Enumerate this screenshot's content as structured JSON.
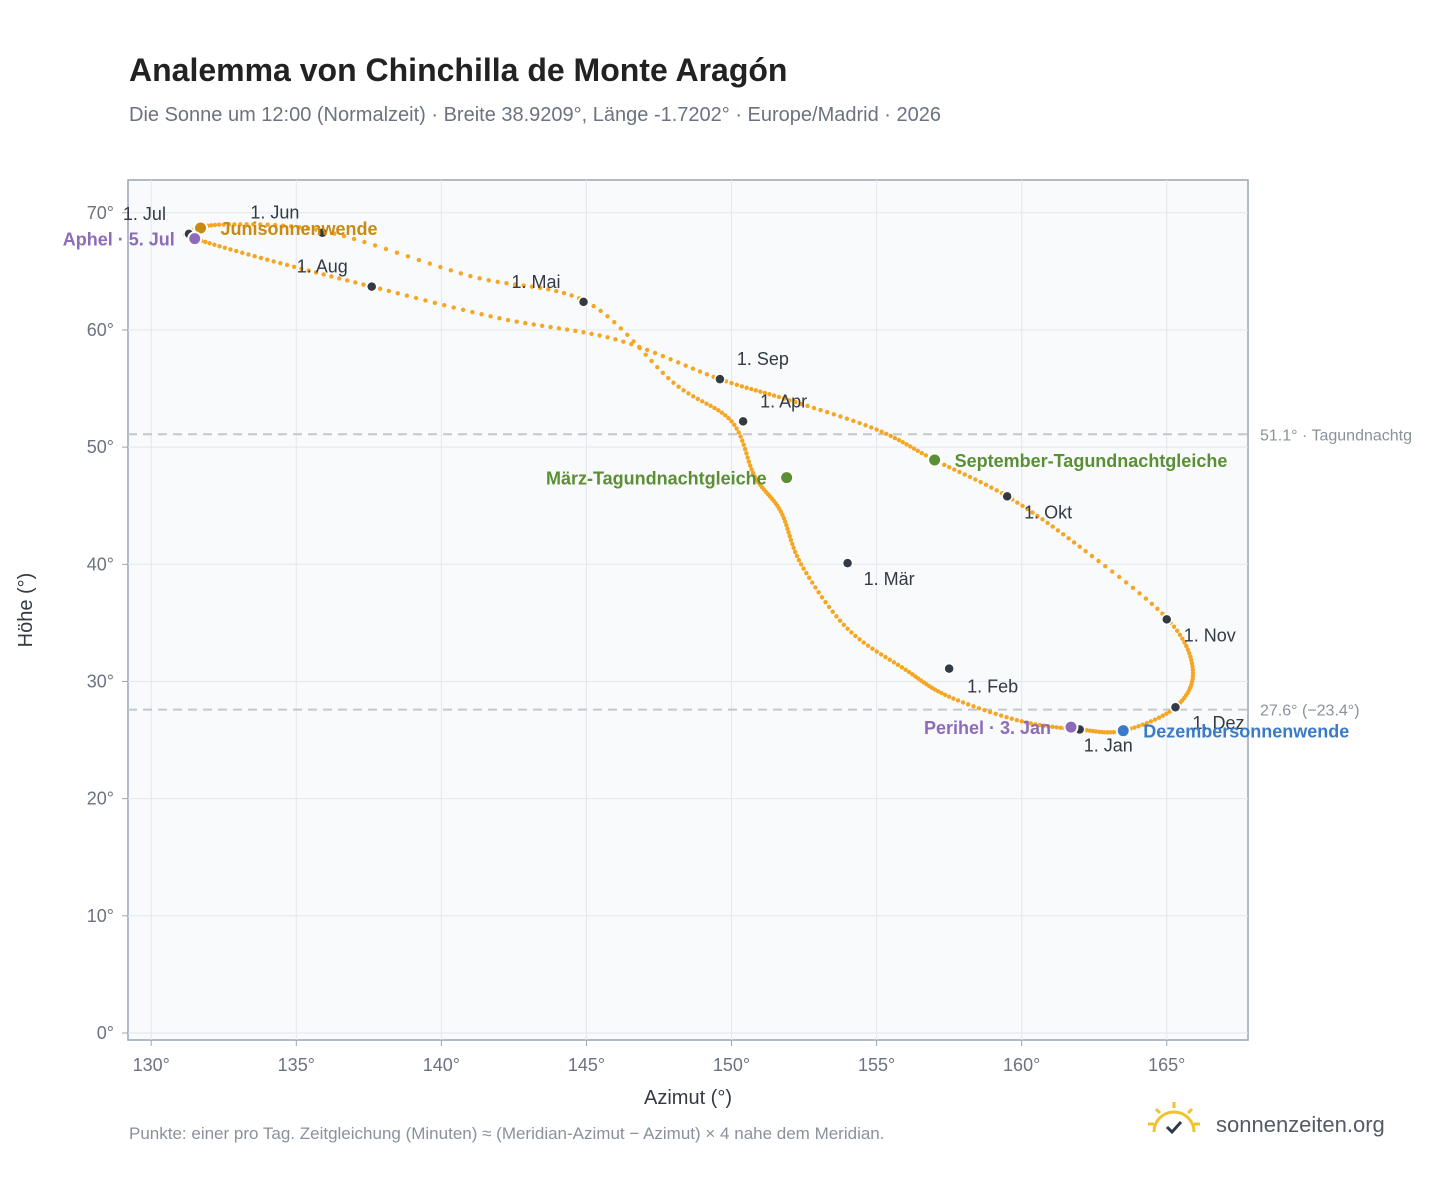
{
  "header": {
    "title": "Analemma von Chinchilla de Monte Aragón",
    "subtitle": "Die Sonne um 12:00 (Normalzeit) · Breite 38.9209°, Länge -1.7202° · Europe/Madrid · 2026"
  },
  "footer": {
    "note": "Punkte: einer pro Tag. Zeitgleichung (Minuten) ≈ (Meridian-Azimut − Azimut) × 4 nahe dem Meridian.",
    "brand": "sonnenzeiten.org",
    "brand_icon": "sun-check-icon"
  },
  "colors": {
    "curve": "#f5a623",
    "month_marker": "#333a44",
    "solstice_june": "#c98a12",
    "solstice_december": "#3a7bc8",
    "equinox": "#5a8f34",
    "apsis": "#8e6bb8",
    "reference_line": "#c3c8cf",
    "plot_background": "#f8fafc"
  },
  "chart_data": {
    "type": "scatter",
    "xlabel": "Azimut (°)",
    "ylabel": "Höhe (°)",
    "xlim": [
      129.2,
      167.8
    ],
    "ylim": [
      -0.6,
      72.8
    ],
    "x_ticks": [
      130,
      135,
      140,
      145,
      150,
      155,
      160,
      165
    ],
    "x_tick_labels": [
      "130°",
      "135°",
      "140°",
      "145°",
      "150°",
      "155°",
      "160°",
      "165°"
    ],
    "y_ticks": [
      0,
      10,
      20,
      30,
      40,
      50,
      60,
      70
    ],
    "y_tick_labels": [
      "0°",
      "10°",
      "20°",
      "30°",
      "40°",
      "50°",
      "60°",
      "70°"
    ],
    "grid": true,
    "analemma_path": [
      [
        162.0,
        25.9
      ],
      [
        160.0,
        26.6
      ],
      [
        157.5,
        28.7
      ],
      [
        156.0,
        31.0
      ],
      [
        154.0,
        34.5
      ],
      [
        152.4,
        40.0
      ],
      [
        151.7,
        44.5
      ],
      [
        150.8,
        47.5
      ],
      [
        150.0,
        52.2
      ],
      [
        148.0,
        55.5
      ],
      [
        145.0,
        62.4
      ],
      [
        141.0,
        64.6
      ],
      [
        136.0,
        68.4
      ],
      [
        132.5,
        69.0
      ],
      [
        131.3,
        68.3
      ],
      [
        131.5,
        67.8
      ],
      [
        134.0,
        66.0
      ],
      [
        137.6,
        63.7
      ],
      [
        142.0,
        61.0
      ],
      [
        146.0,
        59.2
      ],
      [
        149.6,
        55.8
      ],
      [
        152.0,
        54.0
      ],
      [
        155.0,
        51.5
      ],
      [
        157.0,
        48.9
      ],
      [
        159.5,
        45.8
      ],
      [
        162.0,
        41.5
      ],
      [
        165.0,
        35.4
      ],
      [
        165.9,
        31.0
      ],
      [
        165.3,
        27.8
      ],
      [
        163.5,
        25.8
      ],
      [
        162.0,
        25.9
      ]
    ],
    "months": [
      {
        "label": "1. Jan",
        "x": 162.0,
        "y": 25.9,
        "lx": 4,
        "ly": 22
      },
      {
        "label": "1. Feb",
        "x": 157.5,
        "y": 31.1,
        "lx": 18,
        "ly": 24
      },
      {
        "label": "1. Mär",
        "x": 154.0,
        "y": 40.1,
        "lx": 16,
        "ly": 22
      },
      {
        "label": "1. Apr",
        "x": 150.4,
        "y": 52.2,
        "lx": 17,
        "ly": -14
      },
      {
        "label": "1. Mai",
        "x": 144.9,
        "y": 62.4,
        "lx": -72,
        "ly": -14
      },
      {
        "label": "1. Jun",
        "x": 135.9,
        "y": 68.3,
        "lx": -72,
        "ly": -14
      },
      {
        "label": "1. Jul",
        "x": 131.3,
        "y": 68.2,
        "lx": -66,
        "ly": -14
      },
      {
        "label": "1. Aug",
        "x": 137.6,
        "y": 63.7,
        "lx": -75,
        "ly": -14
      },
      {
        "label": "1. Sep",
        "x": 149.6,
        "y": 55.8,
        "lx": 17,
        "ly": -14
      },
      {
        "label": "1. Okt",
        "x": 159.5,
        "y": 45.8,
        "lx": 17,
        "ly": 22
      },
      {
        "label": "1. Nov",
        "x": 165.0,
        "y": 35.3,
        "lx": 17,
        "ly": 22
      },
      {
        "label": "1. Dez",
        "x": 165.3,
        "y": 27.8,
        "lx": 17,
        "ly": 22
      }
    ],
    "events": [
      {
        "label": "Junisonnenwende",
        "x": 131.7,
        "y": 68.7,
        "color_key": "solstice_june",
        "side": "right"
      },
      {
        "label": "Aphel · 5. Jul",
        "x": 131.5,
        "y": 67.8,
        "color_key": "apsis",
        "side": "left"
      },
      {
        "label": "März-Tagundnachtgleiche",
        "x": 151.9,
        "y": 47.4,
        "color_key": "equinox",
        "side": "left"
      },
      {
        "label": "September-Tagundnachtgleiche",
        "x": 157.0,
        "y": 48.9,
        "color_key": "equinox",
        "side": "right"
      },
      {
        "label": "Perihel · 3. Jan",
        "x": 161.7,
        "y": 26.1,
        "color_key": "apsis",
        "side": "left"
      },
      {
        "label": "Dezembersonnenwende",
        "x": 163.5,
        "y": 25.8,
        "color_key": "solstice_december",
        "side": "right"
      }
    ],
    "reference_lines": [
      {
        "y": 51.1,
        "label": "51.1° · Tagundnachtg"
      },
      {
        "y": 27.6,
        "label": "27.6° (−23.4°)"
      }
    ]
  }
}
